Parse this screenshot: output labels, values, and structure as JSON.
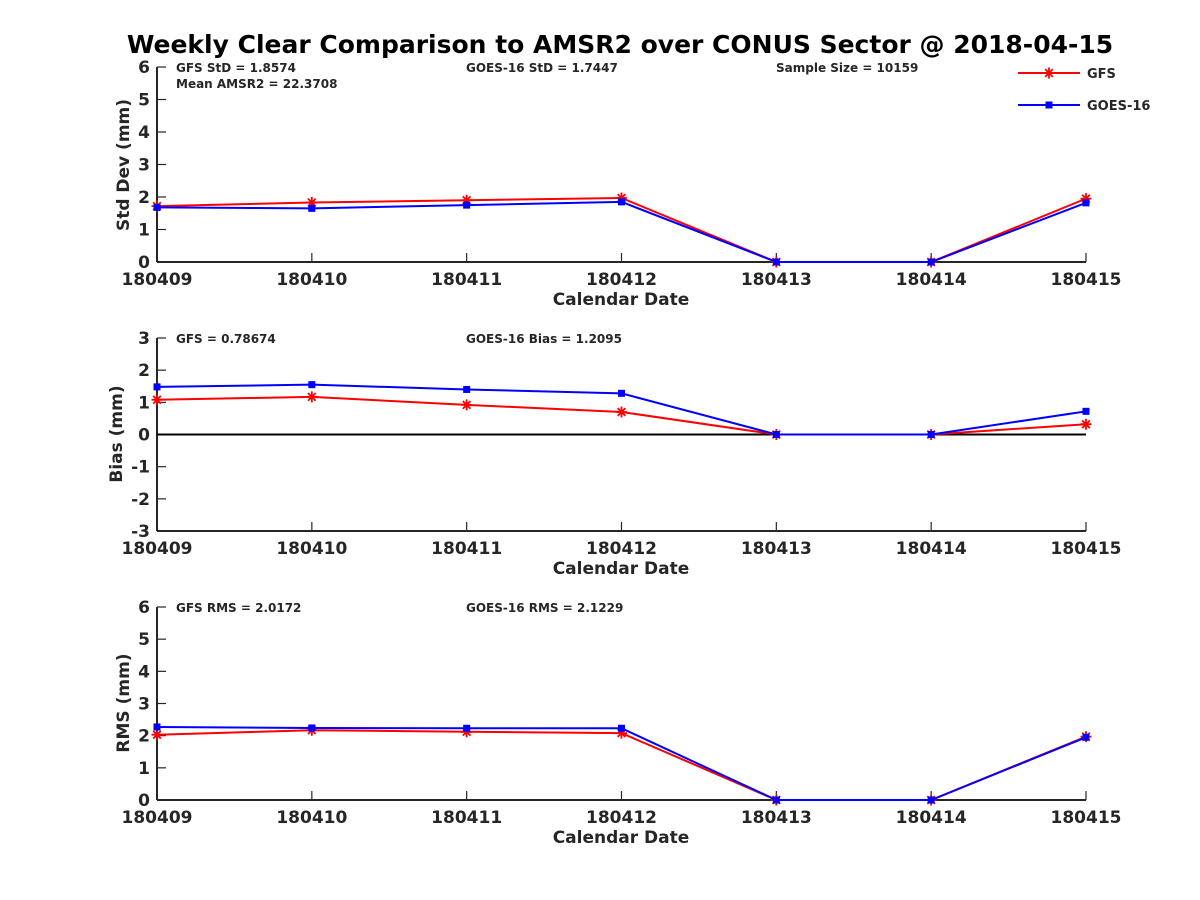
{
  "figure": {
    "title": "Weekly Clear Comparison to AMSR2 over CONUS Sector @ 2018-04-15"
  },
  "legend": {
    "placement": "top-right",
    "entries": [
      {
        "name": "GFS",
        "color": "#ff0000",
        "marker": "asterisk"
      },
      {
        "name": "GOES-16",
        "color": "#0000ff",
        "marker": "square"
      }
    ]
  },
  "chart_data": [
    {
      "type": "line",
      "xlabel": "Calendar Date",
      "ylabel": "Std Dev (mm)",
      "x": [
        "180409",
        "180410",
        "180411",
        "180412",
        "180413",
        "180414",
        "180415"
      ],
      "yticks": [
        "0",
        "1",
        "2",
        "3",
        "4",
        "5",
        "6"
      ],
      "ylim": [
        0,
        6
      ],
      "zero_line": false,
      "annotations": [
        {
          "text": "GFS StD = 1.8574",
          "slot": "left-1"
        },
        {
          "text": "Mean AMSR2 = 22.3708",
          "slot": "left-2"
        },
        {
          "text": "GOES-16 StD = 1.7447",
          "slot": "middle-1"
        },
        {
          "text": "Sample Size = 10159",
          "slot": "right-1"
        }
      ],
      "series": [
        {
          "name": "GFS",
          "color": "#ff0000",
          "marker": "asterisk",
          "values": [
            1.72,
            1.83,
            1.9,
            1.97,
            0,
            0,
            1.95
          ]
        },
        {
          "name": "GOES-16",
          "color": "#0000ff",
          "marker": "square",
          "values": [
            1.68,
            1.65,
            1.75,
            1.85,
            0,
            0,
            1.82
          ]
        }
      ]
    },
    {
      "type": "line",
      "xlabel": "Calendar Date",
      "ylabel": "Bias (mm)",
      "x": [
        "180409",
        "180410",
        "180411",
        "180412",
        "180413",
        "180414",
        "180415"
      ],
      "yticks": [
        "-3",
        "-2",
        "-1",
        "0",
        "1",
        "2",
        "3"
      ],
      "ylim": [
        -3,
        3
      ],
      "zero_line": true,
      "annotations": [
        {
          "text": "GFS = 0.78674",
          "slot": "left-1"
        },
        {
          "text": "GOES-16 Bias  = 1.2095",
          "slot": "middle-1"
        }
      ],
      "series": [
        {
          "name": "GFS",
          "color": "#ff0000",
          "marker": "asterisk",
          "values": [
            1.08,
            1.17,
            0.92,
            0.7,
            0,
            0,
            0.32
          ]
        },
        {
          "name": "GOES-16",
          "color": "#0000ff",
          "marker": "square",
          "values": [
            1.48,
            1.55,
            1.4,
            1.28,
            0,
            0,
            0.72
          ]
        }
      ]
    },
    {
      "type": "line",
      "xlabel": "Calendar Date",
      "ylabel": "RMS (mm)",
      "x": [
        "180409",
        "180410",
        "180411",
        "180412",
        "180413",
        "180414",
        "180415"
      ],
      "yticks": [
        "0",
        "1",
        "2",
        "3",
        "4",
        "5",
        "6"
      ],
      "ylim": [
        0,
        6
      ],
      "zero_line": false,
      "annotations": [
        {
          "text": "GFS RMS = 2.0172",
          "slot": "left-1"
        },
        {
          "text": "GOES-16 RMS = 2.1229",
          "slot": "middle-1"
        }
      ],
      "series": [
        {
          "name": "GFS",
          "color": "#ff0000",
          "marker": "asterisk",
          "values": [
            2.03,
            2.17,
            2.12,
            2.08,
            0,
            0,
            1.97
          ]
        },
        {
          "name": "GOES-16",
          "color": "#0000ff",
          "marker": "square",
          "values": [
            2.27,
            2.24,
            2.23,
            2.23,
            0,
            0,
            1.95
          ]
        }
      ]
    }
  ]
}
